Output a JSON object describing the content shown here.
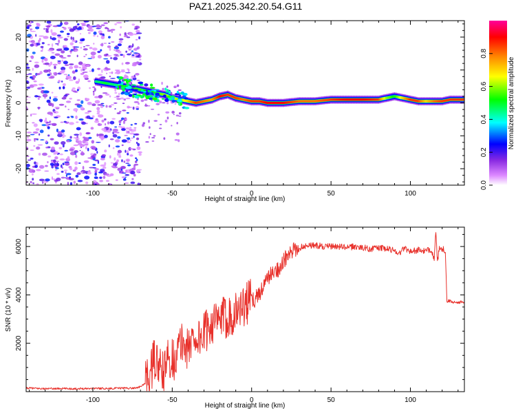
{
  "title": "PAZ1.2025.342.20.54.G11",
  "colors": {
    "snr_line": "#e8302a",
    "axis": "#000000",
    "colormap": [
      "#ffffff",
      "#cc66ff",
      "#8a2be2",
      "#0000ff",
      "#00ffff",
      "#00ff00",
      "#ffff00",
      "#ff7f00",
      "#ff0000",
      "#ff00aa"
    ]
  },
  "chart_data": [
    {
      "type": "heatmap",
      "title": "PAZ1.2025.342.20.54.G11",
      "xlabel": "Height of straight line (km)",
      "ylabel": "Frequency (Hz)",
      "xlim": [
        -142,
        134
      ],
      "ylim": [
        -25,
        25
      ],
      "xticks": [
        -100,
        -50,
        0,
        50,
        100
      ],
      "yticks": [
        -20,
        -10,
        0,
        10,
        20
      ],
      "colorbar": {
        "label": "Normalized spectral amplitude",
        "range": [
          0.0,
          1.0
        ],
        "ticks": [
          0.0,
          0.2,
          0.4,
          0.6,
          0.8
        ]
      },
      "ridge": {
        "x": [
          -98,
          -92,
          -86,
          -80,
          -75,
          -70,
          -65,
          -60,
          -55,
          -50,
          -45,
          -40,
          -35,
          -30,
          -25,
          -20,
          -15,
          -10,
          -5,
          0,
          5,
          10,
          15,
          20,
          30,
          40,
          50,
          60,
          70,
          80,
          85,
          90,
          95,
          100,
          105,
          110,
          115,
          120,
          125,
          134
        ],
        "y": [
          6.5,
          6.0,
          5.5,
          5.0,
          4.5,
          4.0,
          3.5,
          3.0,
          2.5,
          1.5,
          1.0,
          0.5,
          0.0,
          0.5,
          1.0,
          2.0,
          2.5,
          1.5,
          1.0,
          0.5,
          0.5,
          0.0,
          0.0,
          0.0,
          0.5,
          0.5,
          1.0,
          1.0,
          1.0,
          1.0,
          1.5,
          2.0,
          1.5,
          1.0,
          0.5,
          0.5,
          0.5,
          0.5,
          1.0,
          1.0
        ],
        "amplitude": [
          0.45,
          0.5,
          0.45,
          0.5,
          0.55,
          0.55,
          0.5,
          0.55,
          0.6,
          0.65,
          0.6,
          0.7,
          0.85,
          0.8,
          0.75,
          0.9,
          0.85,
          0.85,
          0.8,
          0.85,
          0.85,
          0.9,
          0.9,
          0.9,
          0.8,
          0.8,
          0.85,
          0.9,
          0.9,
          0.85,
          0.6,
          0.5,
          0.7,
          0.85,
          0.85,
          0.7,
          0.8,
          0.85,
          0.85,
          0.85
        ]
      },
      "noise_region_x": [
        -142,
        -70
      ],
      "noise_amplitude_range": [
        0.05,
        0.3
      ]
    },
    {
      "type": "line",
      "xlabel": "Height of straight line (km)",
      "ylabel": "SNR (10 * v/v)",
      "xlim": [
        -142,
        134
      ],
      "ylim": [
        0,
        6800
      ],
      "xticks": [
        -100,
        -50,
        0,
        50,
        100
      ],
      "yticks": [
        2000,
        4000,
        6000
      ],
      "series": [
        {
          "name": "SNR",
          "color": "#e8302a",
          "x": [
            -142,
            -130,
            -120,
            -110,
            -100,
            -90,
            -80,
            -75,
            -70,
            -67,
            -64,
            -61,
            -58,
            -55,
            -52,
            -49,
            -46,
            -43,
            -40,
            -37,
            -34,
            -31,
            -28,
            -25,
            -22,
            -19,
            -16,
            -13,
            -10,
            -7,
            -4,
            -1,
            2,
            5,
            8,
            11,
            14,
            17,
            20,
            23,
            26,
            29,
            32,
            35,
            40,
            45,
            50,
            55,
            60,
            65,
            70,
            75,
            80,
            85,
            90,
            93,
            96,
            100,
            105,
            110,
            113,
            115,
            116,
            117,
            118,
            120,
            121,
            122,
            123,
            124,
            127,
            130,
            134
          ],
          "y": [
            150,
            120,
            130,
            120,
            140,
            130,
            150,
            140,
            200,
            350,
            700,
            1400,
            900,
            800,
            1500,
            1300,
            1800,
            2100,
            1700,
            2300,
            2200,
            2300,
            2600,
            2900,
            2800,
            3000,
            3100,
            3200,
            3300,
            3500,
            3600,
            3800,
            3800,
            4100,
            4400,
            4800,
            4900,
            5100,
            5400,
            5600,
            5800,
            5900,
            6000,
            6050,
            6050,
            6000,
            6000,
            6000,
            5950,
            6000,
            5950,
            5900,
            5950,
            5900,
            5850,
            5700,
            5950,
            5800,
            5850,
            5800,
            5900,
            5500,
            6600,
            5300,
            5900,
            5800,
            5900,
            5800,
            3700,
            3750,
            3700,
            3700,
            3700
          ]
        }
      ]
    }
  ]
}
